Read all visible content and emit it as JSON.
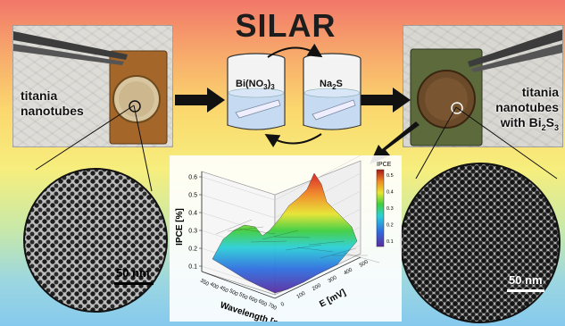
{
  "title": "SILAR",
  "left_photo": {
    "label_line1": "titania",
    "label_line2": "nanotubes"
  },
  "right_photo": {
    "label_line1": "titania",
    "label_line2": "nanotubes",
    "label_line3_prefix": "with Bi",
    "label_line3_sub": "2",
    "label_line3_mid": "S",
    "label_line3_sub2": "3"
  },
  "beakers": {
    "left": {
      "prefix": "Bi(NO",
      "sub1": "3",
      "mid": ")",
      "sub2": "3"
    },
    "right": {
      "prefix": "Na",
      "sub1": "2",
      "mid": "S"
    }
  },
  "sem_left": {
    "scale_label": "50 nm"
  },
  "sem_right": {
    "scale_label": "50 nm"
  },
  "chart_data": {
    "type": "surface3d",
    "zlabel": "IPCE [%]",
    "xlabel": "Wavelength [nm]",
    "ylabel": "E [mV]",
    "z_ticks": [
      "0.1",
      "0.2",
      "0.3",
      "0.4",
      "0.5",
      "0.6"
    ],
    "x_ticks": [
      "350",
      "400",
      "450",
      "500",
      "550",
      "600",
      "650",
      "700"
    ],
    "y_ticks": [
      "0",
      "100",
      "200",
      "300",
      "400",
      "500"
    ],
    "colorbar": {
      "title": "IPCE",
      "ticks": [
        "0.5",
        "0.4",
        "0.3",
        "0.2",
        "0.1"
      ]
    }
  },
  "colors": {
    "arrow": "#111111",
    "solution": "#c9dcf3",
    "beaker_rim": "#f4f4f4"
  }
}
